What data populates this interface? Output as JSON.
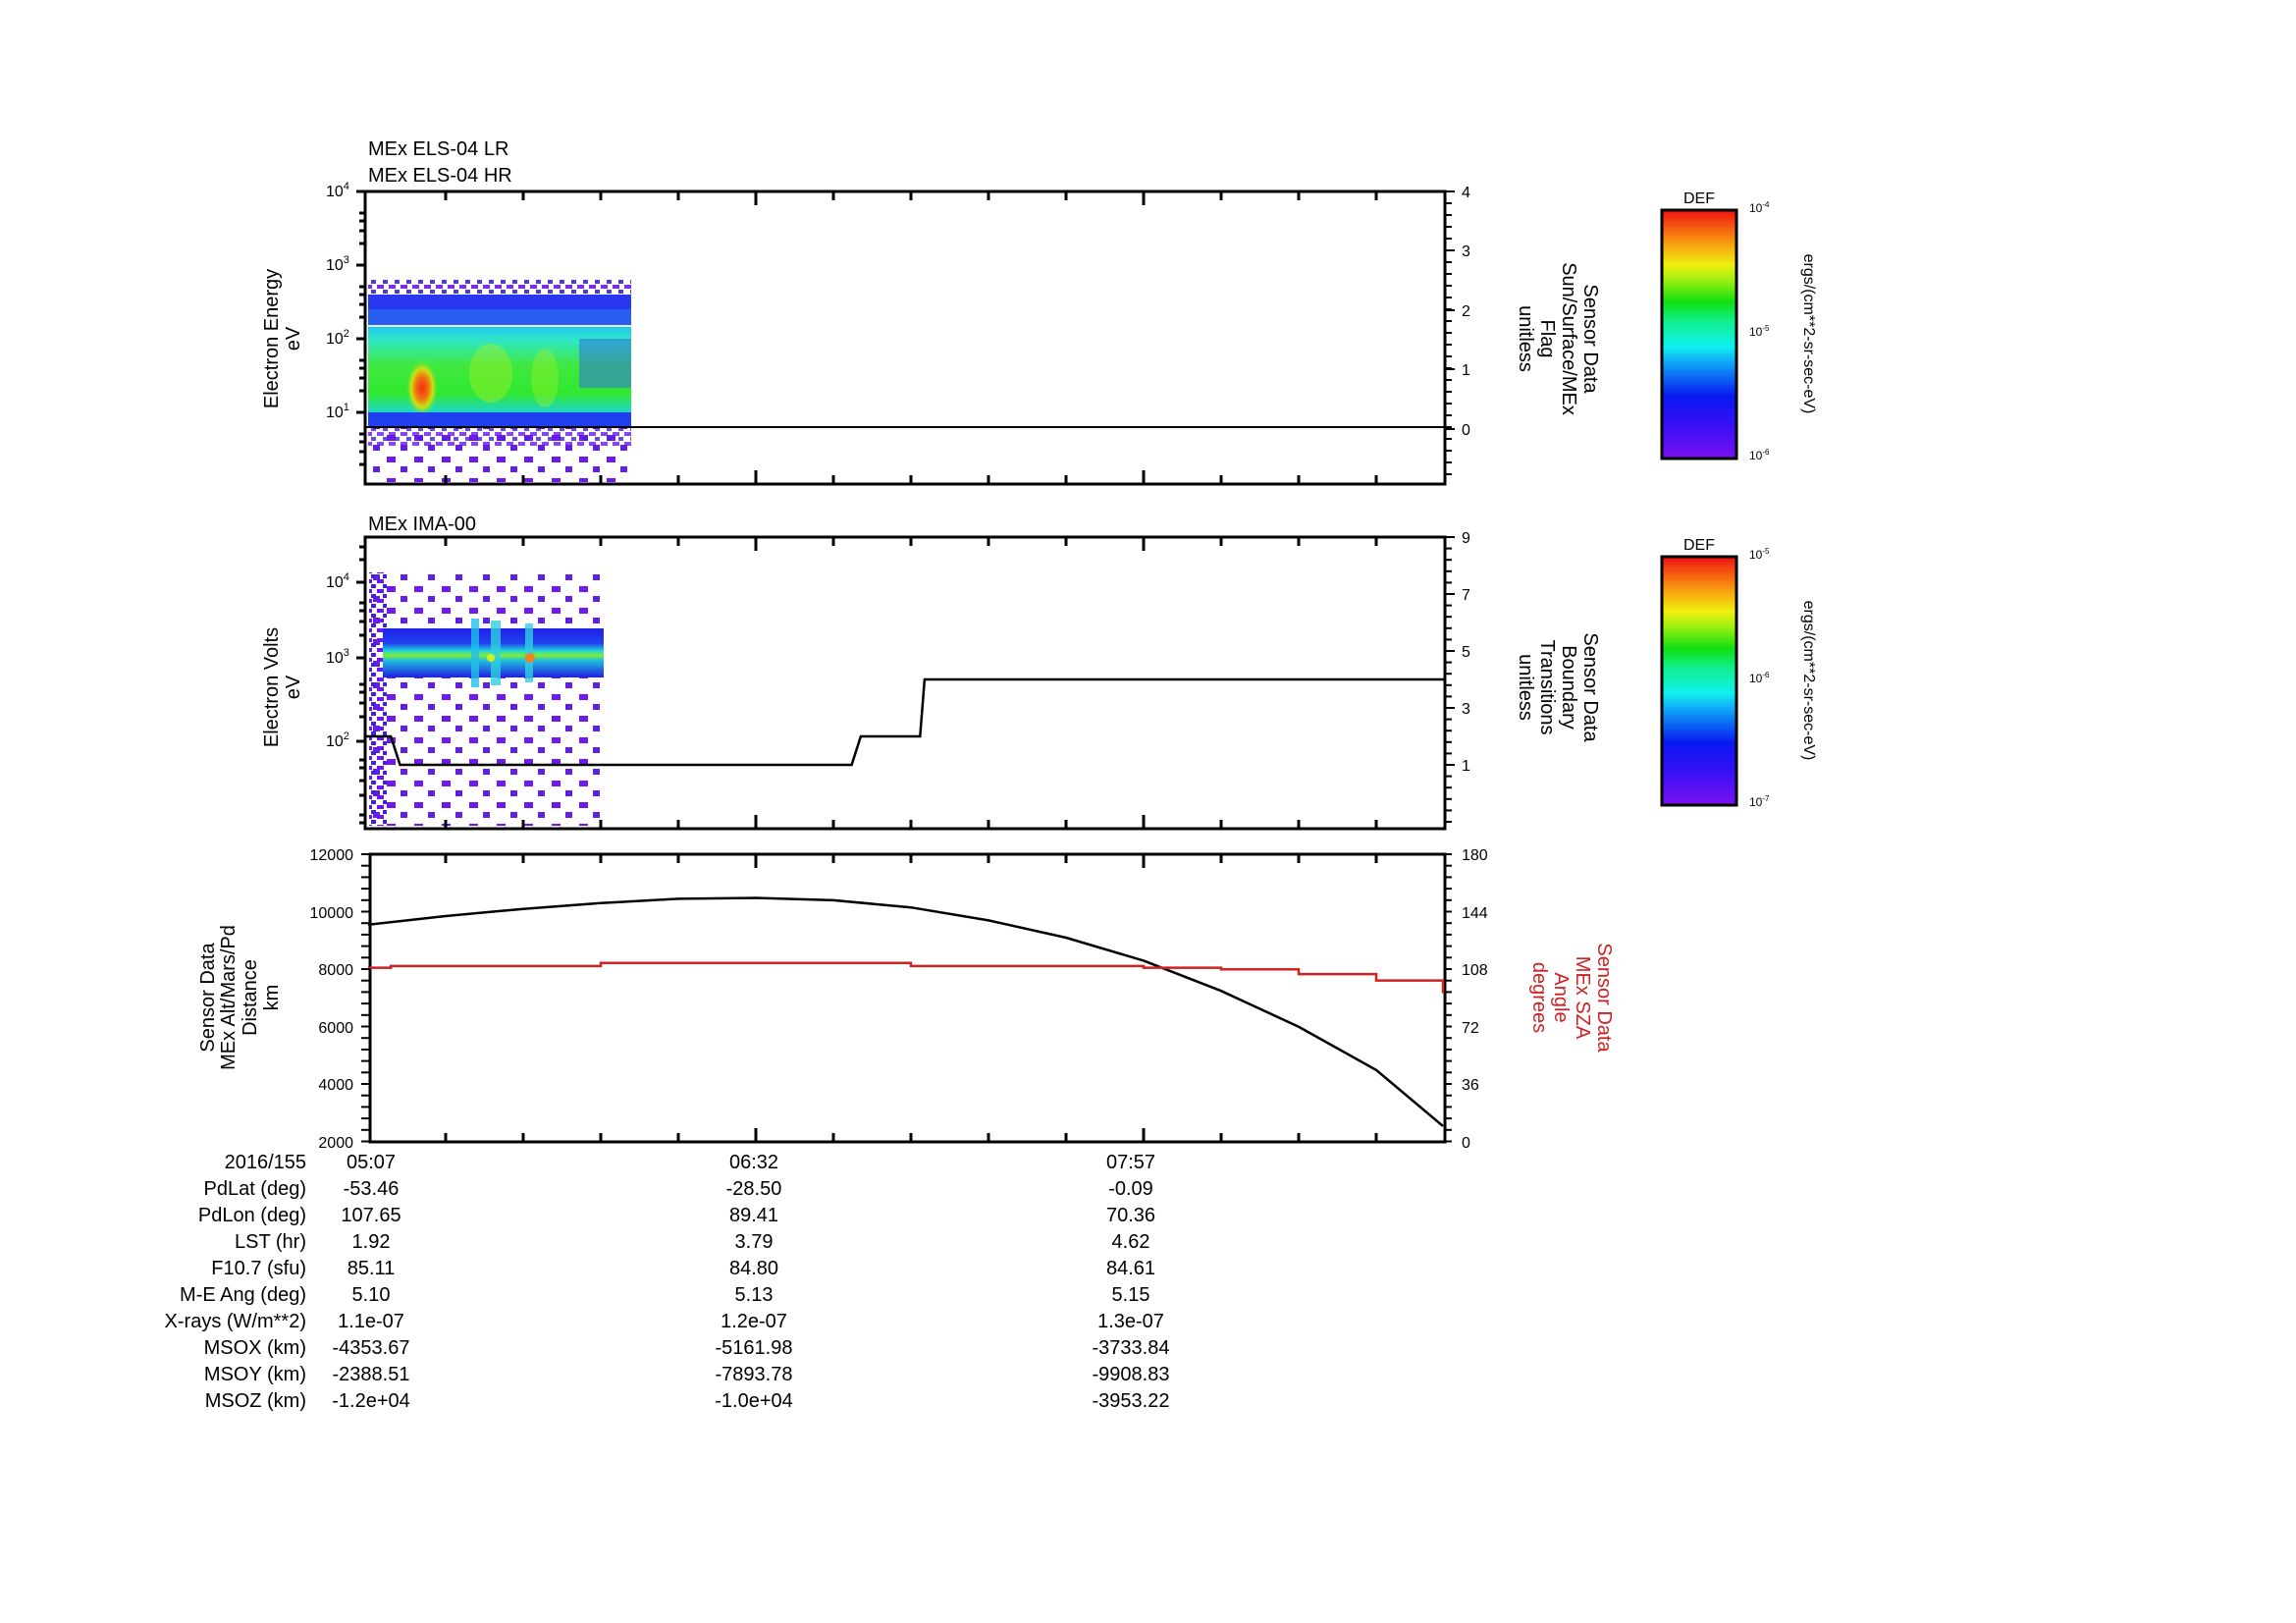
{
  "chart_data": [
    {
      "type": "heatmap",
      "id": "els",
      "title_lines": [
        "MEx ELS-04 LR",
        "MEx ELS-04 HR"
      ],
      "ylabel": [
        "Electron Energy",
        "eV"
      ],
      "yscale": "log",
      "ylim": [
        1.5,
        10000
      ],
      "y_ticks": [
        "10^1",
        "10^2",
        "10^3",
        "10^4"
      ],
      "data_extent": {
        "t_start": "05:07",
        "t_end": "~05:56",
        "energy_min_eV": 2,
        "energy_max_eV": 600
      },
      "features": [
        {
          "desc": "broad green band",
          "energy_eV": [
            8,
            150
          ]
        },
        {
          "desc": "intense peak (red/orange)",
          "time": "~05:18",
          "energy_eV": [
            15,
            35
          ]
        },
        {
          "desc": "blue/purple sparse counts",
          "energy_eV": [
            150,
            600
          ]
        }
      ],
      "overlay": {
        "name": "Sensor Data Sun/Surface/MEx Flag",
        "units": "unitless",
        "right_axis_ylim": [
          -0.9,
          4
        ],
        "right_ticks": [
          0,
          1,
          2,
          3,
          4
        ],
        "values": [
          {
            "t": "05:07",
            "v": 0
          },
          {
            "t": "09:05",
            "v": 0
          }
        ]
      },
      "colorbar": {
        "label": "DEF",
        "units": "ergs/(cm**2-sr-sec-eV)",
        "min": "10^-6",
        "mid": "10^-5",
        "max": "10^-4"
      }
    },
    {
      "type": "heatmap",
      "id": "ima",
      "title_lines": [
        "MEx IMA-00"
      ],
      "ylabel": [
        "Electron Volts",
        "eV"
      ],
      "yscale": "log",
      "ylim": [
        15,
        40000
      ],
      "y_ticks": [
        "10^2",
        "10^3",
        "10^4"
      ],
      "data_extent": {
        "t_start": "05:07",
        "t_end": "~05:52",
        "energy_min_eV": 15,
        "energy_max_eV": 15000
      },
      "features": [
        {
          "desc": "intense band",
          "energy_eV": [
            600,
            2500
          ],
          "center_eV": 1000
        }
      ],
      "overlay": {
        "name": "Sensor Data Boundary Transitions",
        "units": "unitless",
        "right_axis_ylim": [
          -1.2,
          9
        ],
        "right_ticks": [
          1,
          3,
          5,
          7,
          9
        ],
        "values": [
          {
            "t": "05:07",
            "v": 2
          },
          {
            "t": "05:12",
            "v": 2
          },
          {
            "t": "05:14",
            "v": 1
          },
          {
            "t": "06:53",
            "v": 1
          },
          {
            "t": "06:55",
            "v": 2
          },
          {
            "t": "07:08",
            "v": 2
          },
          {
            "t": "07:09",
            "v": 4
          },
          {
            "t": "09:05",
            "v": 4
          }
        ]
      },
      "colorbar": {
        "label": "DEF",
        "units": "ergs/(cm**2-sr-sec-eV)",
        "min": "10^-7",
        "mid": "10^-6",
        "max": "10^-5"
      }
    },
    {
      "type": "line",
      "id": "orbit",
      "ylabel": [
        "Sensor Data",
        "MEx Alt/Mars/Pd",
        "Distance",
        "km"
      ],
      "ylim": [
        2000,
        12000
      ],
      "y_ticks": [
        2000,
        4000,
        6000,
        8000,
        10000,
        12000
      ],
      "right_ylabel": [
        "Sensor Data",
        "MEx SZA",
        "Angle",
        "degrees"
      ],
      "right_ylim": [
        0,
        180
      ],
      "right_ticks": [
        0,
        36,
        72,
        108,
        144,
        180
      ],
      "x_tick_labels": [
        "05:07",
        "06:32",
        "07:57"
      ],
      "series": [
        {
          "name": "MEx Alt/Mars/Pd Distance (km)",
          "color": "#000000",
          "x_min": [
            0,
            17,
            34,
            51,
            68,
            85,
            102,
            119,
            136,
            153,
            170,
            187,
            204,
            221,
            238
          ],
          "values": [
            9550,
            9850,
            10100,
            10300,
            10450,
            10480,
            10400,
            10150,
            9700,
            9100,
            8300,
            7250,
            6000,
            4500,
            2550
          ]
        },
        {
          "name": "MEx SZA Angle (deg)",
          "color": "#cc2222",
          "axis": "right",
          "x_min": [
            0,
            5,
            51,
            85,
            102,
            119,
            136,
            153,
            170,
            187,
            204,
            221,
            238
          ],
          "values": [
            109,
            110,
            112,
            112,
            112,
            110,
            110,
            110,
            109,
            108,
            105,
            101,
            93
          ]
        }
      ]
    }
  ],
  "time_axis": {
    "start": "05:07",
    "end_approx": "09:05",
    "minor_step_min": 17,
    "labels": [
      {
        "time": "05:07",
        "offset_min": 0
      },
      {
        "time": "06:32",
        "offset_min": 85
      },
      {
        "time": "07:57",
        "offset_min": 170
      }
    ]
  },
  "ephemeris": {
    "rows": [
      {
        "label": "2016/155",
        "values": [
          "05:07",
          "06:32",
          "07:57"
        ]
      },
      {
        "label": "PdLat (deg)",
        "values": [
          "-53.46",
          "-28.50",
          "-0.09"
        ]
      },
      {
        "label": "PdLon (deg)",
        "values": [
          "107.65",
          "89.41",
          "70.36"
        ]
      },
      {
        "label": "LST (hr)",
        "values": [
          "1.92",
          "3.79",
          "4.62"
        ]
      },
      {
        "label": "F10.7 (sfu)",
        "values": [
          "85.11",
          "84.80",
          "84.61"
        ]
      },
      {
        "label": "M-E Ang (deg)",
        "values": [
          "5.10",
          "5.13",
          "5.15"
        ]
      },
      {
        "label": "X-rays (W/m**2)",
        "values": [
          "1.1e-07",
          "1.2e-07",
          "1.3e-07"
        ]
      },
      {
        "label": "MSOX (km)",
        "values": [
          "-4353.67",
          "-5161.98",
          "-3733.84"
        ]
      },
      {
        "label": "MSOY (km)",
        "values": [
          "-2388.51",
          "-7893.78",
          "-9908.83"
        ]
      },
      {
        "label": "MSOZ (km)",
        "values": [
          "-1.2e+04",
          "-1.0e+04",
          "-3953.22"
        ]
      }
    ]
  },
  "colors": {
    "axis": "#000000",
    "sza_line": "#cc2222",
    "altitude_line": "#000000"
  }
}
